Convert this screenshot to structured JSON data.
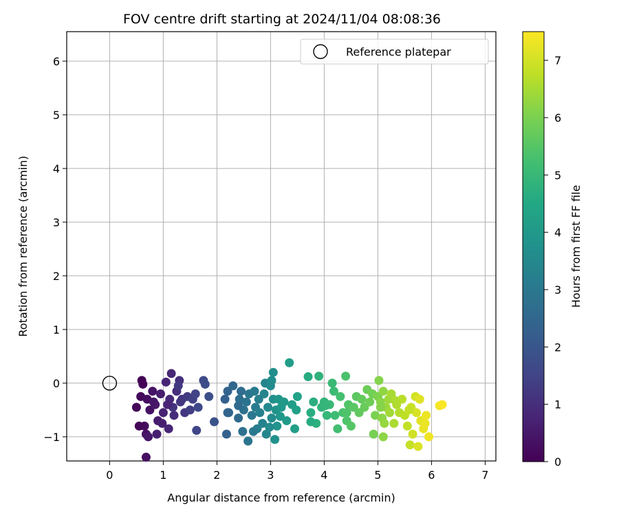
{
  "chart_data": {
    "type": "scatter",
    "title": "FOV centre drift starting at 2024/11/04 08:08:36",
    "xlabel": "Angular distance from reference (arcmin)",
    "ylabel": "Rotation from reference (arcmin)",
    "xlim": [
      -0.8,
      7.2
    ],
    "ylim": [
      -1.45,
      6.55
    ],
    "xticks": [
      0,
      1,
      2,
      3,
      4,
      5,
      6,
      7
    ],
    "yticks": [
      -1,
      0,
      1,
      2,
      3,
      4,
      5,
      6
    ],
    "grid": true,
    "legend": {
      "position": "top-right",
      "entries": [
        "Reference platepar"
      ]
    },
    "reference_point": {
      "x": 0,
      "y": 0
    },
    "colorbar": {
      "label": "Hours from first FF file",
      "range": [
        0,
        7.5
      ],
      "ticks": [
        0,
        1,
        2,
        3,
        4,
        5,
        6,
        7
      ],
      "colormap": "viridis"
    },
    "points": [
      [
        0.6,
        0.05,
        0.0
      ],
      [
        0.62,
        -0.02,
        0.05
      ],
      [
        0.5,
        -0.45,
        0.1
      ],
      [
        0.58,
        -0.25,
        0.15
      ],
      [
        0.65,
        -0.8,
        0.2
      ],
      [
        0.7,
        -0.3,
        0.25
      ],
      [
        0.68,
        -0.95,
        0.3
      ],
      [
        0.75,
        -0.5,
        0.35
      ],
      [
        0.8,
        -0.15,
        0.4
      ],
      [
        0.72,
        -1.0,
        0.45
      ],
      [
        0.85,
        -0.4,
        0.5
      ],
      [
        0.9,
        -0.7,
        0.55
      ],
      [
        0.95,
        -0.2,
        0.6
      ],
      [
        0.88,
        -0.95,
        0.65
      ],
      [
        1.0,
        -0.55,
        0.7
      ],
      [
        1.05,
        0.02,
        0.75
      ],
      [
        1.1,
        -0.85,
        0.8
      ],
      [
        1.15,
        0.18,
        0.85
      ],
      [
        1.12,
        -0.3,
        0.9
      ],
      [
        1.2,
        -0.6,
        0.95
      ],
      [
        1.25,
        -0.15,
        1.0
      ],
      [
        1.3,
        0.05,
        1.05
      ],
      [
        1.18,
        -0.45,
        1.1
      ],
      [
        1.35,
        -0.3,
        1.15
      ],
      [
        1.4,
        -0.55,
        1.2
      ],
      [
        1.28,
        -0.05,
        1.25
      ],
      [
        1.45,
        -0.25,
        1.3
      ],
      [
        1.5,
        -0.5,
        1.35
      ],
      [
        1.55,
        -0.3,
        1.4
      ],
      [
        1.6,
        -0.2,
        1.5
      ],
      [
        1.62,
        -0.88,
        1.55
      ],
      [
        1.65,
        -0.45,
        1.6
      ],
      [
        1.75,
        0.05,
        1.7
      ],
      [
        1.78,
        -0.02,
        1.75
      ],
      [
        1.85,
        -0.25,
        1.8
      ],
      [
        1.95,
        -0.72,
        1.9
      ],
      [
        0.68,
        -1.38,
        0.3
      ],
      [
        0.55,
        -0.8,
        0.1
      ],
      [
        0.82,
        -0.35,
        0.45
      ],
      [
        0.98,
        -0.75,
        0.65
      ],
      [
        1.08,
        -0.4,
        0.78
      ],
      [
        1.32,
        -0.35,
        1.2
      ],
      [
        2.15,
        -0.3,
        2.3
      ],
      [
        2.18,
        -0.95,
        2.35
      ],
      [
        2.2,
        -0.15,
        2.4
      ],
      [
        2.22,
        -0.55,
        2.45
      ],
      [
        2.3,
        -0.05,
        2.5
      ],
      [
        2.4,
        -0.65,
        2.6
      ],
      [
        2.45,
        -0.15,
        2.65
      ],
      [
        2.42,
        -0.3,
        2.7
      ],
      [
        2.48,
        -0.9,
        2.75
      ],
      [
        2.5,
        -0.5,
        2.8
      ],
      [
        2.55,
        -0.35,
        2.85
      ],
      [
        2.58,
        -1.08,
        2.9
      ],
      [
        2.6,
        -0.2,
        2.95
      ],
      [
        2.65,
        -0.6,
        3.0
      ],
      [
        2.7,
        -0.15,
        3.05
      ],
      [
        2.72,
        -0.45,
        3.1
      ],
      [
        2.75,
        -0.85,
        3.15
      ],
      [
        2.78,
        -0.3,
        3.2
      ],
      [
        2.8,
        -0.55,
        3.25
      ],
      [
        2.85,
        -0.75,
        3.3
      ],
      [
        2.88,
        -0.2,
        3.35
      ],
      [
        2.9,
        0.0,
        3.4
      ],
      [
        2.92,
        -0.95,
        3.45
      ],
      [
        2.95,
        -0.45,
        3.5
      ],
      [
        3.0,
        -0.05,
        3.55
      ],
      [
        3.02,
        -0.65,
        3.6
      ],
      [
        3.05,
        0.2,
        3.65
      ],
      [
        3.05,
        -0.3,
        3.7
      ],
      [
        3.08,
        -1.05,
        3.75
      ],
      [
        3.1,
        -0.5,
        3.8
      ],
      [
        3.12,
        -0.8,
        3.85
      ],
      [
        3.15,
        -0.3,
        3.9
      ],
      [
        3.2,
        -0.45,
        3.95
      ],
      [
        3.25,
        -0.35,
        4.0
      ],
      [
        3.3,
        -0.7,
        4.05
      ],
      [
        3.35,
        0.38,
        4.1
      ],
      [
        3.4,
        -0.4,
        4.15
      ],
      [
        3.45,
        -0.85,
        4.2
      ],
      [
        3.5,
        -0.25,
        4.3
      ],
      [
        2.4,
        -0.42,
        2.6
      ],
      [
        2.68,
        -0.9,
        3.0
      ],
      [
        2.98,
        -0.82,
        3.55
      ],
      [
        3.02,
        0.05,
        3.62
      ],
      [
        3.18,
        -0.62,
        3.9
      ],
      [
        3.48,
        -0.5,
        4.25
      ],
      [
        2.2,
        -0.55,
        2.4
      ],
      [
        3.7,
        0.12,
        4.6
      ],
      [
        3.75,
        -0.55,
        4.65
      ],
      [
        3.8,
        -0.35,
        4.7
      ],
      [
        3.85,
        -0.75,
        4.75
      ],
      [
        3.9,
        0.13,
        4.8
      ],
      [
        3.95,
        -0.45,
        4.85
      ],
      [
        4.0,
        -0.35,
        4.9
      ],
      [
        4.05,
        -0.6,
        4.95
      ],
      [
        4.1,
        -0.4,
        5.0
      ],
      [
        4.15,
        0.0,
        5.05
      ],
      [
        4.18,
        -0.15,
        5.1
      ],
      [
        4.2,
        -0.6,
        5.15
      ],
      [
        4.25,
        -0.85,
        5.2
      ],
      [
        4.3,
        -0.25,
        5.25
      ],
      [
        4.35,
        -0.55,
        5.3
      ],
      [
        4.4,
        0.13,
        5.35
      ],
      [
        4.42,
        -0.7,
        5.4
      ],
      [
        4.45,
        -0.4,
        5.45
      ],
      [
        4.5,
        -0.8,
        5.5
      ],
      [
        4.55,
        -0.45,
        5.55
      ],
      [
        4.6,
        -0.25,
        5.6
      ],
      [
        4.65,
        -0.55,
        5.65
      ],
      [
        4.7,
        -0.3,
        5.7
      ],
      [
        4.75,
        -0.45,
        5.75
      ],
      [
        4.8,
        -0.12,
        5.8
      ],
      [
        4.85,
        -0.35,
        5.85
      ],
      [
        4.9,
        -0.2,
        5.9
      ],
      [
        4.92,
        -0.95,
        5.95
      ],
      [
        4.95,
        -0.6,
        6.0
      ],
      [
        5.0,
        -0.25,
        6.05
      ],
      [
        5.02,
        0.05,
        6.1
      ],
      [
        5.05,
        -0.35,
        6.15
      ],
      [
        5.08,
        -0.65,
        6.2
      ],
      [
        5.1,
        -0.15,
        6.25
      ],
      [
        5.12,
        -0.75,
        6.3
      ],
      [
        5.15,
        -0.45,
        6.35
      ],
      [
        5.2,
        -0.3,
        6.4
      ],
      [
        5.22,
        -0.55,
        6.45
      ],
      [
        5.25,
        -0.2,
        6.5
      ],
      [
        5.3,
        -0.75,
        6.55
      ],
      [
        5.35,
        -0.4,
        6.6
      ],
      [
        5.4,
        -0.55,
        6.65
      ],
      [
        5.45,
        -0.3,
        6.7
      ],
      [
        5.5,
        -0.6,
        6.75
      ],
      [
        5.55,
        -0.8,
        6.8
      ],
      [
        5.6,
        -1.15,
        6.85
      ],
      [
        5.62,
        -0.45,
        6.9
      ],
      [
        5.65,
        -0.95,
        6.95
      ],
      [
        5.7,
        -0.25,
        7.0
      ],
      [
        5.72,
        -0.55,
        7.05
      ],
      [
        5.75,
        -1.18,
        7.1
      ],
      [
        5.78,
        -0.3,
        7.15
      ],
      [
        5.8,
        -0.7,
        7.2
      ],
      [
        5.85,
        -0.85,
        7.25
      ],
      [
        5.9,
        -0.6,
        7.3
      ],
      [
        5.95,
        -1.0,
        7.35
      ],
      [
        6.15,
        -0.42,
        7.4
      ],
      [
        6.2,
        -0.4,
        7.45
      ],
      [
        5.1,
        -1.0,
        6.2
      ],
      [
        3.75,
        -0.72,
        4.62
      ],
      [
        4.42,
        -0.55,
        5.4
      ],
      [
        5.05,
        -0.45,
        6.12
      ],
      [
        5.58,
        -0.5,
        6.82
      ],
      [
        5.88,
        -0.75,
        7.28
      ],
      [
        4.02,
        -0.42,
        4.92
      ],
      [
        5.32,
        -0.32,
        6.58
      ]
    ]
  }
}
